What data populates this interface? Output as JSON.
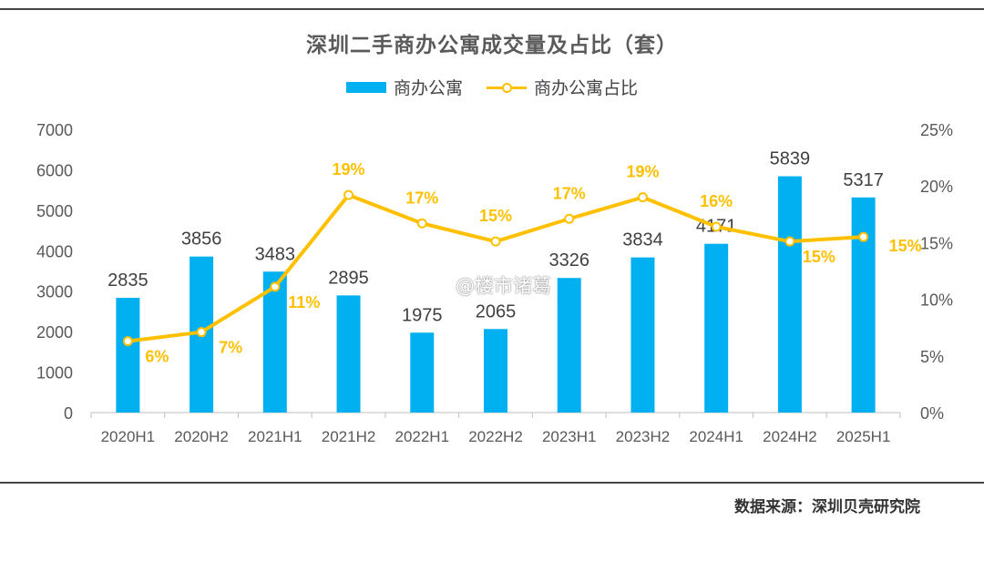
{
  "source_note": "数据来源：深圳贝壳研究院",
  "watermark": "@楼市诸葛",
  "colors": {
    "bar": "#00b0f0",
    "line": "#ffc000",
    "text": "#595959",
    "axis": "#bfbfbf"
  },
  "chart_data": {
    "type": "bar",
    "title": "深圳二手商办公寓成交量及占比（套）",
    "legend_position": "top",
    "grid": false,
    "categories": [
      "2020H1",
      "2020H2",
      "2021H1",
      "2021H2",
      "2022H1",
      "2022H2",
      "2023H1",
      "2023H2",
      "2024H1",
      "2024H2",
      "2025H1"
    ],
    "y_left": {
      "min": 0,
      "max": 7000,
      "ticks": [
        "0",
        "1000",
        "2000",
        "3000",
        "4000",
        "5000",
        "6000",
        "7000"
      ]
    },
    "y_right": {
      "min": 0,
      "max": 25,
      "ticks": [
        "0%",
        "5%",
        "10%",
        "15%",
        "20%",
        "25%"
      ]
    },
    "series": [
      {
        "name": "商办公寓",
        "type": "bar",
        "axis": "left",
        "values": [
          2835,
          3856,
          3483,
          2895,
          1975,
          2065,
          3326,
          3834,
          4171,
          5839,
          5317
        ],
        "labels": [
          "2835",
          "3856",
          "3483",
          "2895",
          "1975",
          "2065",
          "3326",
          "3834",
          "4171",
          "5839",
          "5317"
        ]
      },
      {
        "name": "商办公寓占比",
        "type": "line",
        "axis": "right",
        "values": [
          6.3,
          7.1,
          11.1,
          19.2,
          16.7,
          15.1,
          17.1,
          19.0,
          16.4,
          15.1,
          15.5
        ],
        "labels": [
          "6%",
          "7%",
          "11%",
          "19%",
          "17%",
          "15%",
          "17%",
          "19%",
          "16%",
          "15%",
          "15%"
        ]
      }
    ]
  }
}
